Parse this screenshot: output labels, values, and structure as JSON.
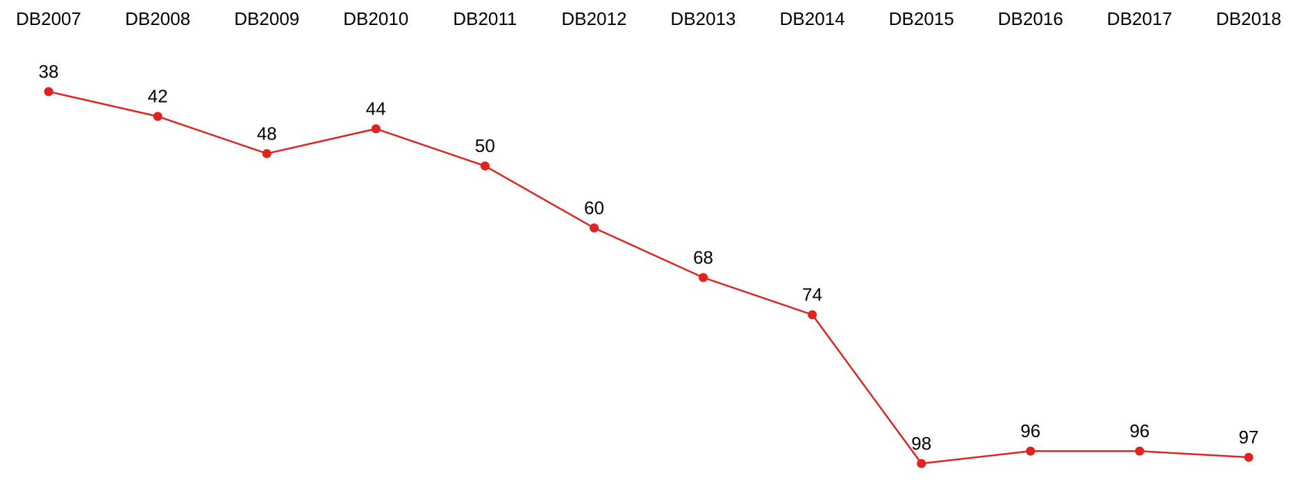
{
  "chart_data": {
    "type": "line",
    "categories": [
      "DB2007",
      "DB2008",
      "DB2009",
      "DB2010",
      "DB2011",
      "DB2012",
      "DB2013",
      "DB2014",
      "DB2015",
      "DB2016",
      "DB2017",
      "DB2018"
    ],
    "series": [
      {
        "values": [
          38,
          42,
          48,
          44,
          50,
          60,
          68,
          74,
          98,
          96,
          96,
          97
        ],
        "color": "#e3221d"
      }
    ],
    "y_axis": {
      "reversed": true,
      "visible": false,
      "range": [
        38,
        98
      ]
    },
    "x_axis_position": "top",
    "markers": "circle",
    "data_labels": true,
    "grid": false,
    "legend": "none",
    "title": "",
    "xlabel": "",
    "ylabel": ""
  }
}
